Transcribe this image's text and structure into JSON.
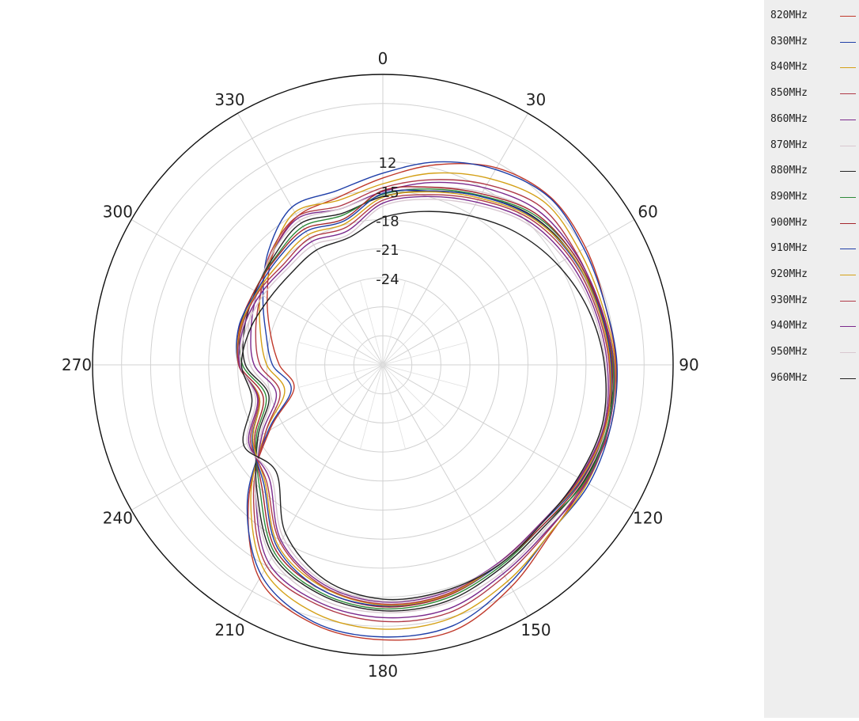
{
  "chart_data": {
    "type": "polar-line",
    "angle_ticks": [
      0,
      30,
      60,
      90,
      120,
      150,
      180,
      210,
      240,
      270,
      300,
      330
    ],
    "angle_labels": [
      "0",
      "30",
      "60",
      "90",
      "120",
      "150",
      "180",
      "210",
      "240",
      "270",
      "300",
      "330"
    ],
    "radial_labels": [
      "12",
      "15",
      "18",
      "21",
      "24"
    ],
    "radial_label_values": [
      -12,
      -15,
      -18,
      -21,
      -24
    ],
    "radial_range": [
      -33,
      -3
    ],
    "grid": true,
    "legend_position": "right",
    "angles_deg": [
      0,
      15,
      30,
      45,
      60,
      75,
      90,
      105,
      120,
      135,
      150,
      165,
      180,
      195,
      210,
      225,
      240,
      255,
      270,
      285,
      300,
      315,
      330,
      345
    ],
    "series": [
      {
        "name": "820MHz",
        "color": "#c0392b",
        "values": [
          -13.7,
          -11.6,
          -9.5,
          -8.5,
          -8.8,
          -9.2,
          -8.9,
          -8.6,
          -8.8,
          -8.4,
          -6.5,
          -4.6,
          -4.6,
          -5.3,
          -7.5,
          -13.4,
          -19.5,
          -23.5,
          -22.3,
          -21.0,
          -19.2,
          -16.9,
          -15.3,
          -15.1
        ]
      },
      {
        "name": "830MHz",
        "color": "#1f3fa8",
        "values": [
          -13.2,
          -11.3,
          -9.7,
          -8.6,
          -9.0,
          -9.2,
          -8.8,
          -8.6,
          -8.4,
          -8.5,
          -6.9,
          -5.1,
          -4.9,
          -5.5,
          -7.9,
          -13.2,
          -19.3,
          -23.2,
          -21.6,
          -20.5,
          -18.7,
          -16.3,
          -14.2,
          -14.4
        ]
      },
      {
        "name": "840MHz",
        "color": "#d4a017",
        "values": [
          -14.3,
          -12.5,
          -10.8,
          -9.3,
          -9.5,
          -9.5,
          -9.0,
          -8.8,
          -8.6,
          -8.5,
          -7.2,
          -5.9,
          -5.7,
          -6.4,
          -8.5,
          -13.7,
          -19.0,
          -22.5,
          -21.0,
          -19.9,
          -18.4,
          -16.8,
          -14.8,
          -15.4
        ]
      },
      {
        "name": "850MHz",
        "color": "#b03a48",
        "values": [
          -14.7,
          -13.2,
          -11.5,
          -9.9,
          -9.9,
          -9.8,
          -9.2,
          -8.8,
          -8.9,
          -8.8,
          -7.8,
          -6.5,
          -6.5,
          -7.3,
          -9.0,
          -14.1,
          -19.0,
          -22.0,
          -20.3,
          -19.4,
          -18.4,
          -16.6,
          -15.3,
          -16.0
        ]
      },
      {
        "name": "860MHz",
        "color": "#7b2a8c",
        "values": [
          -15.1,
          -13.5,
          -11.9,
          -10.4,
          -10.0,
          -9.7,
          -9.1,
          -8.8,
          -8.7,
          -8.9,
          -8.1,
          -6.9,
          -6.9,
          -7.6,
          -9.4,
          -14.4,
          -18.6,
          -21.6,
          -19.7,
          -18.9,
          -18.0,
          -16.8,
          -15.5,
          -16.3
        ]
      },
      {
        "name": "870MHz",
        "color": "#d8c8d0",
        "values": [
          -15.3,
          -14.0,
          -12.4,
          -10.8,
          -10.5,
          -10.1,
          -9.6,
          -9.0,
          -9.1,
          -9.2,
          -8.3,
          -7.5,
          -7.4,
          -8.0,
          -10.0,
          -14.4,
          -18.4,
          -21.0,
          -19.3,
          -18.6,
          -18.0,
          -16.8,
          -15.8,
          -16.3
        ]
      },
      {
        "name": "880MHz",
        "color": "#222222",
        "values": [
          -15.6,
          -14.4,
          -12.9,
          -11.2,
          -10.4,
          -10.0,
          -9.4,
          -8.9,
          -9.0,
          -9.4,
          -8.7,
          -7.7,
          -7.6,
          -8.4,
          -10.3,
          -14.6,
          -18.1,
          -20.8,
          -18.8,
          -18.2,
          -17.8,
          -17.1,
          -16.1,
          -16.8
        ]
      },
      {
        "name": "890MHz",
        "color": "#2e8b3a",
        "values": [
          -15.4,
          -14.2,
          -12.8,
          -11.0,
          -10.2,
          -9.9,
          -9.2,
          -8.9,
          -8.9,
          -9.6,
          -8.9,
          -8.0,
          -7.8,
          -8.6,
          -10.6,
          -15.0,
          -17.9,
          -20.5,
          -18.5,
          -17.8,
          -17.7,
          -17.3,
          -16.5,
          -17.0
        ]
      },
      {
        "name": "900MHz",
        "color": "#a4262c",
        "values": [
          -15.0,
          -14.0,
          -12.6,
          -10.8,
          -10.2,
          -9.8,
          -9.3,
          -9.1,
          -9.2,
          -9.6,
          -9.1,
          -8.2,
          -8.0,
          -8.9,
          -10.9,
          -15.3,
          -17.7,
          -20.2,
          -18.2,
          -17.7,
          -17.7,
          -17.4,
          -16.8,
          -17.4
        ]
      },
      {
        "name": "910MHz",
        "color": "#1f3fa8",
        "values": [
          -15.3,
          -14.4,
          -12.9,
          -11.3,
          -10.5,
          -9.9,
          -9.4,
          -9.1,
          -9.3,
          -9.8,
          -9.1,
          -8.3,
          -8.1,
          -8.9,
          -11.2,
          -15.6,
          -17.4,
          -19.8,
          -18.1,
          -17.6,
          -17.9,
          -17.6,
          -17.1,
          -17.6
        ]
      },
      {
        "name": "920MHz",
        "color": "#d4a017",
        "values": [
          -15.7,
          -14.5,
          -13.1,
          -11.4,
          -10.4,
          -10.0,
          -9.5,
          -9.1,
          -9.4,
          -9.9,
          -9.2,
          -8.3,
          -8.2,
          -9.2,
          -11.4,
          -15.8,
          -17.5,
          -19.8,
          -18.1,
          -17.8,
          -18.0,
          -18.0,
          -17.5,
          -17.9
        ]
      },
      {
        "name": "930MHz",
        "color": "#b03a48",
        "values": [
          -16.0,
          -14.8,
          -13.3,
          -11.6,
          -10.7,
          -10.2,
          -9.6,
          -9.2,
          -9.5,
          -9.9,
          -9.3,
          -8.4,
          -8.3,
          -9.3,
          -11.8,
          -16.0,
          -17.2,
          -19.7,
          -18.1,
          -17.9,
          -18.1,
          -18.4,
          -17.9,
          -18.3
        ]
      },
      {
        "name": "940MHz",
        "color": "#7b2a8c",
        "values": [
          -16.3,
          -15.0,
          -13.6,
          -11.9,
          -11.0,
          -10.4,
          -9.8,
          -9.3,
          -9.6,
          -9.9,
          -9.3,
          -8.6,
          -8.5,
          -9.5,
          -12.0,
          -16.4,
          -17.0,
          -19.6,
          -18.2,
          -18.1,
          -18.4,
          -18.7,
          -18.3,
          -18.7
        ]
      },
      {
        "name": "950MHz",
        "color": "#d8c8d0",
        "values": [
          -16.6,
          -15.3,
          -13.9,
          -12.2,
          -11.3,
          -10.6,
          -10.0,
          -9.4,
          -9.7,
          -9.8,
          -9.2,
          -8.7,
          -8.6,
          -9.7,
          -12.4,
          -16.7,
          -16.8,
          -19.4,
          -18.3,
          -18.4,
          -18.7,
          -19.0,
          -18.7,
          -19.1
        ]
      },
      {
        "name": "960MHz",
        "color": "#222222",
        "values": [
          -17.8,
          -16.6,
          -15.2,
          -13.6,
          -12.2,
          -11.0,
          -10.1,
          -9.5,
          -9.7,
          -9.8,
          -9.1,
          -8.8,
          -8.8,
          -10.0,
          -12.9,
          -17.4,
          -16.4,
          -19.0,
          -18.4,
          -18.8,
          -19.4,
          -19.6,
          -19.3,
          -19.4
        ]
      }
    ]
  }
}
